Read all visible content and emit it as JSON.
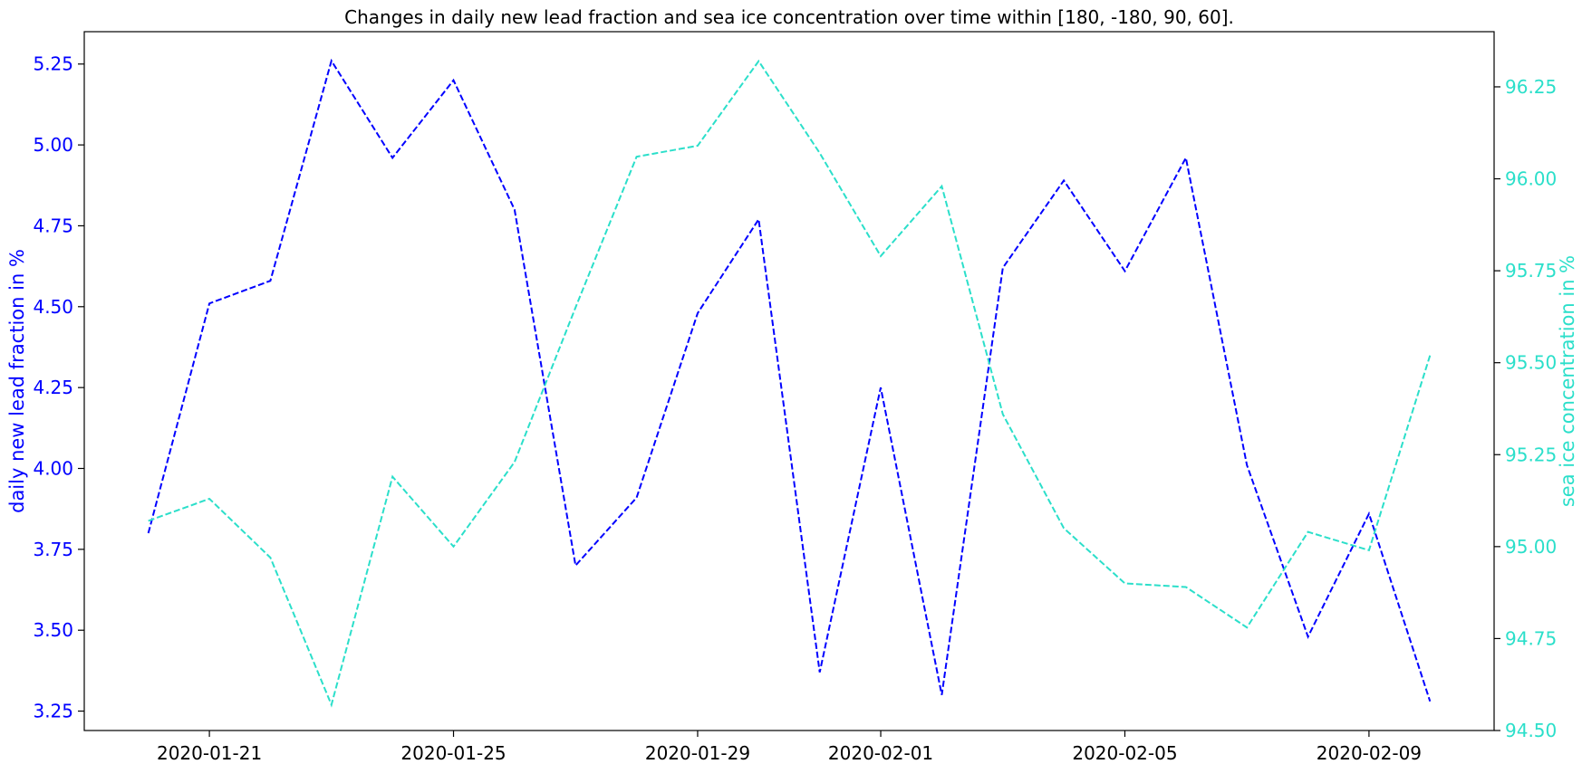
{
  "chart_data": {
    "type": "line",
    "title": "Changes in daily new lead fraction and sea ice concentration over time within [180, -180, 90, 60].",
    "x": [
      "2020-01-20",
      "2020-01-21",
      "2020-01-22",
      "2020-01-23",
      "2020-01-24",
      "2020-01-25",
      "2020-01-26",
      "2020-01-27",
      "2020-01-28",
      "2020-01-29",
      "2020-01-30",
      "2020-01-31",
      "2020-02-01",
      "2020-02-02",
      "2020-02-03",
      "2020-02-04",
      "2020-02-05",
      "2020-02-06",
      "2020-02-07",
      "2020-02-08",
      "2020-02-09",
      "2020-02-10"
    ],
    "x_tick_labels": [
      "2020-01-21",
      "2020-01-25",
      "2020-01-29",
      "2020-02-01",
      "2020-02-05",
      "2020-02-09"
    ],
    "series": [
      {
        "axis": "left",
        "color": "#0000ff",
        "line_style": "dashed",
        "values": [
          3.8,
          4.51,
          4.58,
          5.26,
          4.96,
          5.2,
          4.8,
          3.7,
          3.91,
          4.48,
          4.77,
          3.37,
          4.25,
          3.3,
          4.62,
          4.89,
          4.61,
          4.96,
          4.01,
          3.48,
          3.86,
          3.28
        ]
      },
      {
        "axis": "right",
        "color": "#2bdfca",
        "line_style": "dashed",
        "values": [
          95.07,
          95.13,
          94.97,
          94.57,
          95.19,
          95.0,
          95.23,
          95.65,
          96.06,
          96.09,
          96.32,
          96.07,
          95.79,
          95.98,
          95.36,
          95.05,
          94.9,
          94.89,
          94.78,
          95.04,
          94.99,
          95.52
        ]
      }
    ],
    "y_left": {
      "label": "daily new lead fraction in %",
      "color": "#0000ff",
      "lim": [
        3.19,
        5.35
      ],
      "ticks": [
        "3.25",
        "3.50",
        "3.75",
        "4.00",
        "4.25",
        "4.50",
        "4.75",
        "5.00",
        "5.25"
      ]
    },
    "y_right": {
      "label": "sea ice concentration in %",
      "color": "#2bdfca",
      "lim": [
        94.5,
        96.4
      ],
      "ticks": [
        "94.50",
        "94.75",
        "95.00",
        "95.25",
        "95.50",
        "95.75",
        "96.00",
        "96.25"
      ]
    },
    "grid": false,
    "legend": "none"
  }
}
